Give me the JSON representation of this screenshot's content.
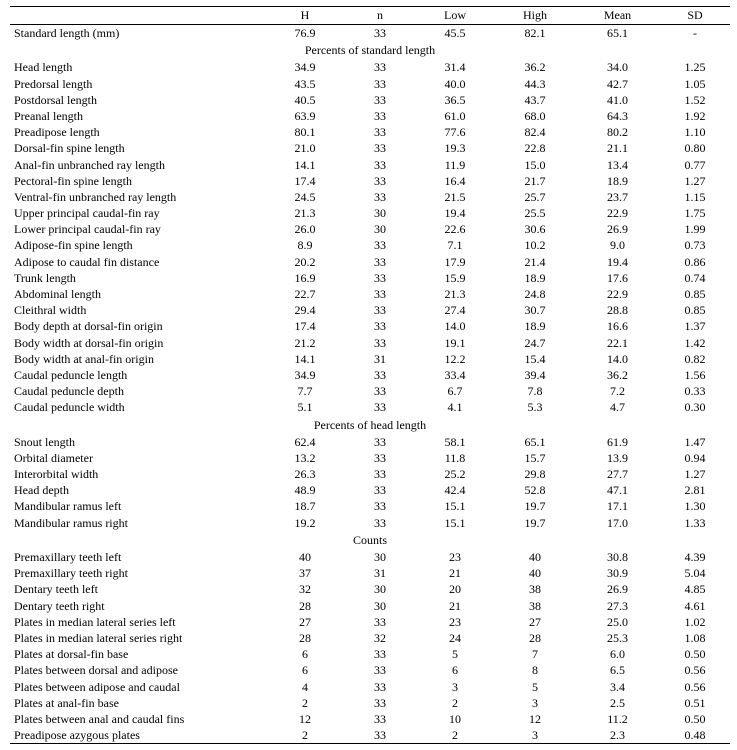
{
  "columns": [
    "",
    "H",
    "n",
    "Low",
    "High",
    "Mean",
    "SD"
  ],
  "rows": [
    {
      "t": "data",
      "label": "Standard length (mm)",
      "H": "76.9",
      "n": "33",
      "Low": "45.5",
      "High": "82.1",
      "Mean": "65.1",
      "SD": "-"
    },
    {
      "t": "section",
      "label": "Percents of standard length"
    },
    {
      "t": "data",
      "label": "Head length",
      "H": "34.9",
      "n": "33",
      "Low": "31.4",
      "High": "36.2",
      "Mean": "34.0",
      "SD": "1.25"
    },
    {
      "t": "data",
      "label": "Predorsal length",
      "H": "43.5",
      "n": "33",
      "Low": "40.0",
      "High": "44.3",
      "Mean": "42.7",
      "SD": "1.05"
    },
    {
      "t": "data",
      "label": "Postdorsal length",
      "H": "40.5",
      "n": "33",
      "Low": "36.5",
      "High": "43.7",
      "Mean": "41.0",
      "SD": "1.52"
    },
    {
      "t": "data",
      "label": "Preanal length",
      "H": "63.9",
      "n": "33",
      "Low": "61.0",
      "High": "68.0",
      "Mean": "64.3",
      "SD": "1.92"
    },
    {
      "t": "data",
      "label": "Preadipose length",
      "H": "80.1",
      "n": "33",
      "Low": "77.6",
      "High": "82.4",
      "Mean": "80.2",
      "SD": "1.10"
    },
    {
      "t": "data",
      "label": "Dorsal-fin spine length",
      "H": "21.0",
      "n": "33",
      "Low": "19.3",
      "High": "22.8",
      "Mean": "21.1",
      "SD": "0.80"
    },
    {
      "t": "data",
      "label": "Anal-fin unbranched ray length",
      "H": "14.1",
      "n": "33",
      "Low": "11.9",
      "High": "15.0",
      "Mean": "13.4",
      "SD": "0.77"
    },
    {
      "t": "data",
      "label": "Pectoral-fin spine length",
      "H": "17.4",
      "n": "33",
      "Low": "16.4",
      "High": "21.7",
      "Mean": "18.9",
      "SD": "1.27"
    },
    {
      "t": "data",
      "label": "Ventral-fin unbranched ray length",
      "H": "24.5",
      "n": "33",
      "Low": "21.5",
      "High": "25.7",
      "Mean": "23.7",
      "SD": "1.15"
    },
    {
      "t": "data",
      "label": "Upper principal caudal-fin ray",
      "H": "21.3",
      "n": "30",
      "Low": "19.4",
      "High": "25.5",
      "Mean": "22.9",
      "SD": "1.75"
    },
    {
      "t": "data",
      "label": "Lower principal caudal-fin ray",
      "H": "26.0",
      "n": "30",
      "Low": "22.6",
      "High": "30.6",
      "Mean": "26.9",
      "SD": "1.99"
    },
    {
      "t": "data",
      "label": "Adipose-fin spine length",
      "H": "8.9",
      "n": "33",
      "Low": "7.1",
      "High": "10.2",
      "Mean": "9.0",
      "SD": "0.73"
    },
    {
      "t": "data",
      "label": "Adipose to caudal fin distance",
      "H": "20.2",
      "n": "33",
      "Low": "17.9",
      "High": "21.4",
      "Mean": "19.4",
      "SD": "0.86"
    },
    {
      "t": "data",
      "label": "Trunk length",
      "H": "16.9",
      "n": "33",
      "Low": "15.9",
      "High": "18.9",
      "Mean": "17.6",
      "SD": "0.74"
    },
    {
      "t": "data",
      "label": "Abdominal length",
      "H": "22.7",
      "n": "33",
      "Low": "21.3",
      "High": "24.8",
      "Mean": "22.9",
      "SD": "0.85"
    },
    {
      "t": "data",
      "label": "Cleithral width",
      "H": "29.4",
      "n": "33",
      "Low": "27.4",
      "High": "30.7",
      "Mean": "28.8",
      "SD": "0.85"
    },
    {
      "t": "data",
      "label": "Body depth at dorsal-fin origin",
      "H": "17.4",
      "n": "33",
      "Low": "14.0",
      "High": "18.9",
      "Mean": "16.6",
      "SD": "1.37"
    },
    {
      "t": "data",
      "label": "Body width at dorsal-fin origin",
      "H": "21.2",
      "n": "33",
      "Low": "19.1",
      "High": "24.7",
      "Mean": "22.1",
      "SD": "1.42"
    },
    {
      "t": "data",
      "label": "Body width at anal-fin origin",
      "H": "14.1",
      "n": "31",
      "Low": "12.2",
      "High": "15.4",
      "Mean": "14.0",
      "SD": "0.82"
    },
    {
      "t": "data",
      "label": "Caudal peduncle length",
      "H": "34.9",
      "n": "33",
      "Low": "33.4",
      "High": "39.4",
      "Mean": "36.2",
      "SD": "1.56"
    },
    {
      "t": "data",
      "label": "Caudal peduncle depth",
      "H": "7.7",
      "n": "33",
      "Low": "6.7",
      "High": "7.8",
      "Mean": "7.2",
      "SD": "0.33"
    },
    {
      "t": "data",
      "label": "Caudal peduncle width",
      "H": "5.1",
      "n": "33",
      "Low": "4.1",
      "High": "5.3",
      "Mean": "4.7",
      "SD": "0.30"
    },
    {
      "t": "section",
      "label": "Percents of head length"
    },
    {
      "t": "data",
      "label": "Snout length",
      "H": "62.4",
      "n": "33",
      "Low": "58.1",
      "High": "65.1",
      "Mean": "61.9",
      "SD": "1.47"
    },
    {
      "t": "data",
      "label": "Orbital diameter",
      "H": "13.2",
      "n": "33",
      "Low": "11.8",
      "High": "15.7",
      "Mean": "13.9",
      "SD": "0.94"
    },
    {
      "t": "data",
      "label": "Interorbital width",
      "H": "26.3",
      "n": "33",
      "Low": "25.2",
      "High": "29.8",
      "Mean": "27.7",
      "SD": "1.27"
    },
    {
      "t": "data",
      "label": "Head depth",
      "H": "48.9",
      "n": "33",
      "Low": "42.4",
      "High": "52.8",
      "Mean": "47.1",
      "SD": "2.81"
    },
    {
      "t": "data",
      "label": "Mandibular ramus left",
      "H": "18.7",
      "n": "33",
      "Low": "15.1",
      "High": "19.7",
      "Mean": "17.1",
      "SD": "1.30"
    },
    {
      "t": "data",
      "label": "Mandibular ramus right",
      "H": "19.2",
      "n": "33",
      "Low": "15.1",
      "High": "19.7",
      "Mean": "17.0",
      "SD": "1.33"
    },
    {
      "t": "section",
      "label": "Counts"
    },
    {
      "t": "data",
      "label": "Premaxillary teeth left",
      "H": "40",
      "n": "30",
      "Low": "23",
      "High": "40",
      "Mean": "30.8",
      "SD": "4.39"
    },
    {
      "t": "data",
      "label": "Premaxillary teeth right",
      "H": "37",
      "n": "31",
      "Low": "21",
      "High": "40",
      "Mean": "30.9",
      "SD": "5.04"
    },
    {
      "t": "data",
      "label": "Dentary teeth left",
      "H": "32",
      "n": "30",
      "Low": "20",
      "High": "38",
      "Mean": "26.9",
      "SD": "4.85"
    },
    {
      "t": "data",
      "label": "Dentary teeth right",
      "H": "28",
      "n": "30",
      "Low": "21",
      "High": "38",
      "Mean": "27.3",
      "SD": "4.61"
    },
    {
      "t": "data",
      "label": "Plates in median lateral series left",
      "H": "27",
      "n": "33",
      "Low": "23",
      "High": "27",
      "Mean": "25.0",
      "SD": "1.02"
    },
    {
      "t": "data",
      "label": "Plates in median lateral series right",
      "H": "28",
      "n": "32",
      "Low": "24",
      "High": "28",
      "Mean": "25.3",
      "SD": "1.08"
    },
    {
      "t": "data",
      "label": "Plates at dorsal-fin base",
      "H": "6",
      "n": "33",
      "Low": "5",
      "High": "7",
      "Mean": "6.0",
      "SD": "0.50"
    },
    {
      "t": "data",
      "label": "Plates between dorsal and adipose",
      "H": "6",
      "n": "33",
      "Low": "6",
      "High": "8",
      "Mean": "6.5",
      "SD": "0.56"
    },
    {
      "t": "data",
      "label": "Plates between adipose and caudal",
      "H": "4",
      "n": "33",
      "Low": "3",
      "High": "5",
      "Mean": "3.4",
      "SD": "0.56"
    },
    {
      "t": "data",
      "label": "Plates at anal-fin base",
      "H": "2",
      "n": "33",
      "Low": "2",
      "High": "3",
      "Mean": "2.5",
      "SD": "0.51"
    },
    {
      "t": "data",
      "label": "Plates between anal and caudal fins",
      "H": "12",
      "n": "33",
      "Low": "10",
      "High": "12",
      "Mean": "11.2",
      "SD": "0.50"
    },
    {
      "t": "data",
      "label": "Preadipose azygous plates",
      "H": "2",
      "n": "33",
      "Low": "2",
      "High": "3",
      "Mean": "2.3",
      "SD": "0.48"
    }
  ]
}
